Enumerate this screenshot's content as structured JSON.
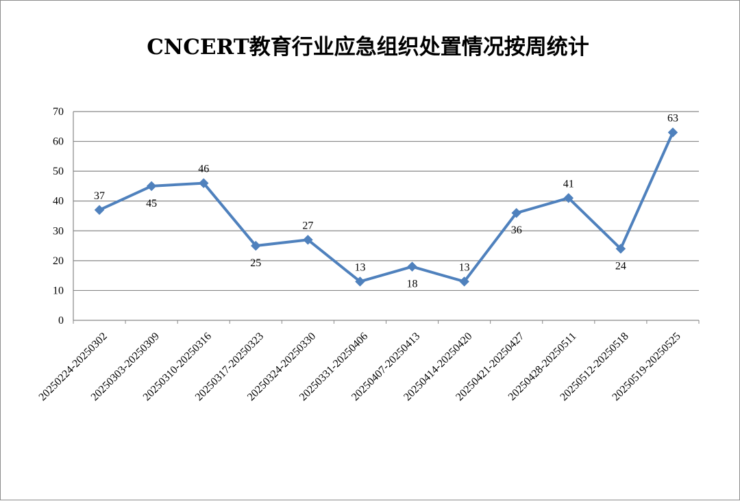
{
  "chart_data": {
    "type": "line",
    "title": "CNCERT教育行业应急组织处置情况按周统计",
    "xlabel": "",
    "ylabel": "",
    "ylim": [
      0,
      70
    ],
    "yticks": [
      0,
      10,
      20,
      30,
      40,
      50,
      60,
      70
    ],
    "grid": true,
    "legend": "none",
    "categories": [
      "20250224-20250302",
      "20250303-20250309",
      "20250310-20250316",
      "20250317-20250323",
      "20250324-20250330",
      "20250331-20250406",
      "20250407-20250413",
      "20250414-20250420",
      "20250421-20250427",
      "20250428-20250511",
      "20250512-20250518",
      "20250519-20250525"
    ],
    "series": [
      {
        "values": [
          37,
          45,
          46,
          25,
          27,
          13,
          18,
          13,
          36,
          41,
          24,
          63
        ],
        "label_positions": [
          "above",
          "below",
          "above",
          "below",
          "above",
          "above",
          "below",
          "above",
          "below",
          "above",
          "below",
          "above"
        ]
      }
    ],
    "colors": {
      "line": "#4F81BD",
      "grid": "#868686",
      "axis": "#868686"
    }
  }
}
